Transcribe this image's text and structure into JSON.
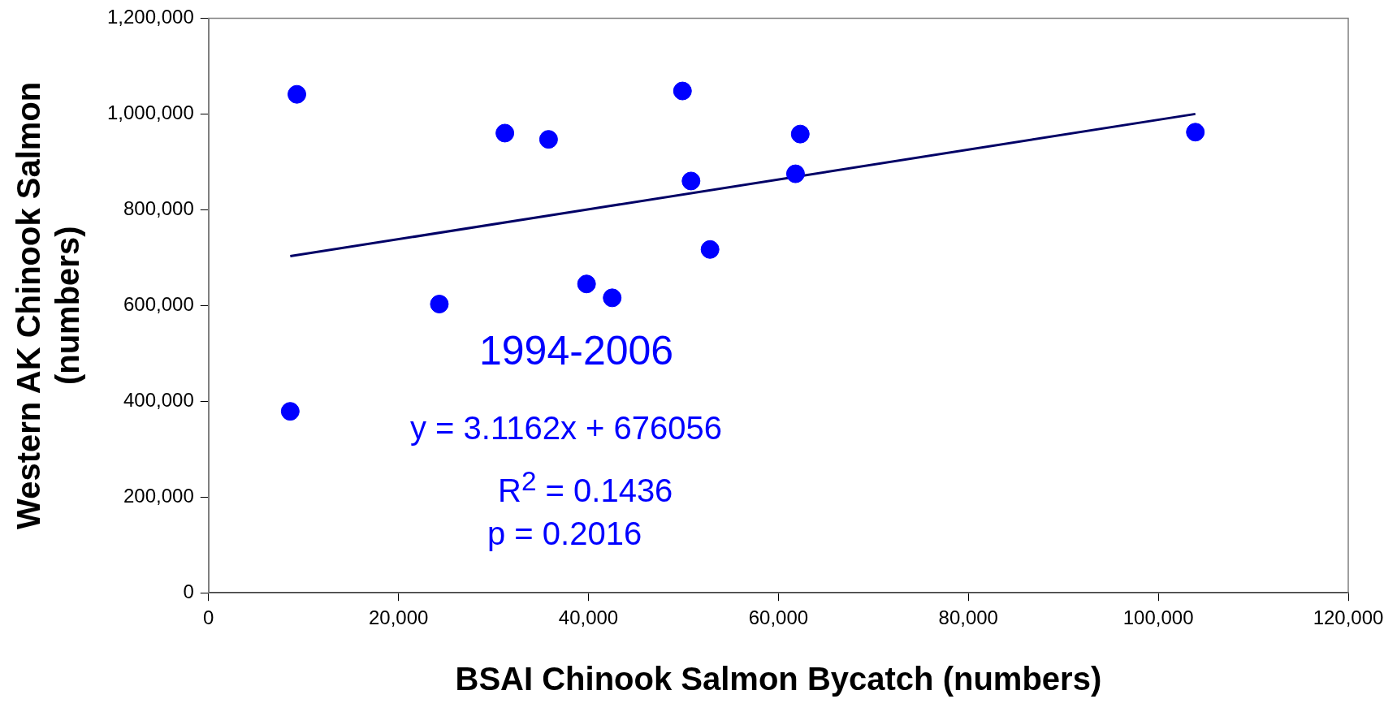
{
  "chart_data": {
    "type": "scatter",
    "xlabel": "BSAI Chinook Salmon Bycatch (numbers)",
    "ylabel": "Western AK Chinook Salmon (numbers)",
    "xlim": [
      0,
      120000
    ],
    "xticks": [
      {
        "value": 0,
        "label": "0"
      },
      {
        "value": 20000,
        "label": "20,000"
      },
      {
        "value": 40000,
        "label": "40,000"
      },
      {
        "value": 60000,
        "label": "60,000"
      },
      {
        "value": 80000,
        "label": "80,000"
      },
      {
        "value": 100000,
        "label": "100,000"
      },
      {
        "value": 120000,
        "label": "120,000"
      }
    ],
    "ylim": [
      0,
      1200000
    ],
    "yticks": [
      {
        "value": 0,
        "label": "0"
      },
      {
        "value": 200000,
        "label": "200,000"
      },
      {
        "value": 400000,
        "label": "400,000"
      },
      {
        "value": 600000,
        "label": "600,000"
      },
      {
        "value": 800000,
        "label": "800,000"
      },
      {
        "value": 1000000,
        "label": "1,000,000"
      },
      {
        "value": 1200000,
        "label": "1,200,000"
      }
    ],
    "grid": false,
    "legend": false,
    "series": [
      {
        "type": "scatter",
        "marker": "circle",
        "color": "#0000ff",
        "x": [
          9300,
          8600,
          24300,
          31200,
          35800,
          39800,
          42500,
          49900,
          50800,
          52800,
          61800,
          62300,
          103900
        ],
        "values": [
          1041000,
          379000,
          603000,
          960000,
          947000,
          645000,
          616000,
          1048000,
          860000,
          717000,
          875000,
          958000,
          962000
        ]
      },
      {
        "type": "line",
        "marker": "none",
        "color": "#000066",
        "x": [
          8600,
          103900
        ],
        "values": [
          703000,
          1000000
        ]
      }
    ],
    "annotations": [
      "1994-2006",
      "y = 3.1162x + 676056",
      "R$^{2}$ = 0.1436",
      "p = 0.2016"
    ]
  }
}
